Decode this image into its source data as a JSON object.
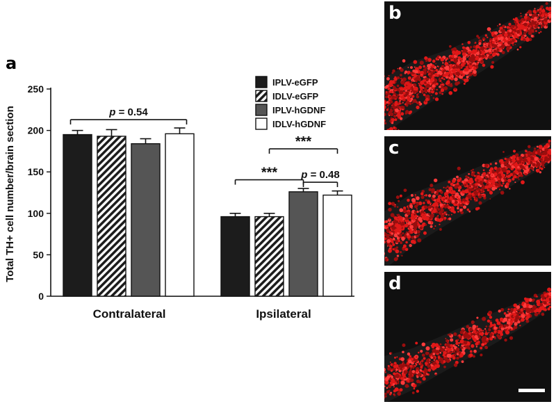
{
  "panels": {
    "a": "a",
    "b": "b",
    "c": "c",
    "d": "d"
  },
  "chart_data": {
    "type": "bar",
    "ylabel": "Total TH+ cell number/brain section",
    "xlabel": "",
    "title": "",
    "ylim": [
      0,
      250
    ],
    "yticks": [
      0,
      50,
      100,
      150,
      200,
      250
    ],
    "categories": [
      "Contralateral",
      "Ipsilateral"
    ],
    "legend_position": "top-right",
    "series": [
      {
        "name": "IPLV-eGFP",
        "values": [
          195,
          96
        ],
        "errors": [
          5,
          4
        ],
        "fill": "solid",
        "color": "#1c1c1c"
      },
      {
        "name": "IDLV-eGFP",
        "values": [
          193,
          96
        ],
        "errors": [
          8,
          4
        ],
        "fill": "hatch",
        "color": "#1c1c1c"
      },
      {
        "name": "IPLV-hGDNF",
        "values": [
          184,
          126
        ],
        "errors": [
          6,
          4
        ],
        "fill": "solid",
        "color": "#555555"
      },
      {
        "name": "IDLV-hGDNF",
        "values": [
          196,
          122
        ],
        "errors": [
          7,
          5
        ],
        "fill": "open",
        "color": "#ffffff"
      }
    ],
    "annotations": [
      {
        "text": "p = 0.54",
        "label": "p",
        "value": "= 0.54",
        "group": "Contralateral",
        "from_series": 0,
        "to_series": 3,
        "level": 1
      },
      {
        "text": "***",
        "group": "Ipsilateral",
        "from_series": 0,
        "to_series": 2,
        "level": 1
      },
      {
        "text": "p = 0.48",
        "label": "p",
        "value": "= 0.48",
        "group": "Ipsilateral",
        "from_series": 2,
        "to_series": 3,
        "level": 1
      },
      {
        "text": "***",
        "group": "Ipsilateral",
        "from_series": 1,
        "to_series": 3,
        "level": 2
      }
    ]
  }
}
